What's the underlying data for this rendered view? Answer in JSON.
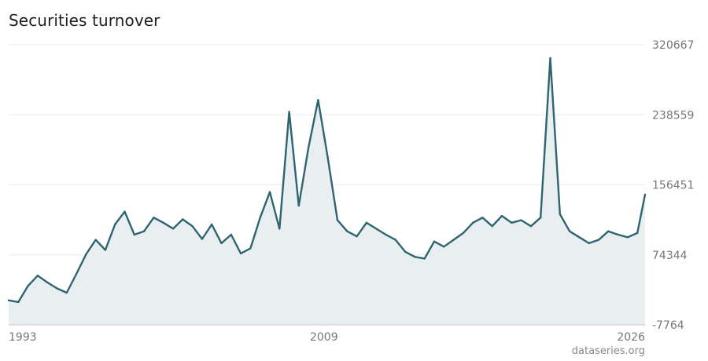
{
  "chart_data": {
    "type": "area",
    "title": "Securities turnover",
    "credit": "dataseries.org",
    "y_ticks": [
      "320667",
      "238559",
      "156451",
      "74344",
      "-7764"
    ],
    "x_ticks": [
      "1993",
      "2009",
      "2026"
    ],
    "ylim": [
      -7764,
      320667
    ],
    "xlim": [
      1993.0,
      2025.9
    ],
    "grid": "horizontal",
    "colors": {
      "line": "#2e6570",
      "fill": "#e9eff1",
      "grid": "#ebebeb",
      "axis": "#c8c8c8"
    },
    "x": [
      1993.0,
      1993.5,
      1994.0,
      1994.5,
      1995.0,
      1995.5,
      1996.0,
      1996.5,
      1997.0,
      1997.5,
      1998.0,
      1998.5,
      1999.0,
      1999.5,
      2000.0,
      2000.5,
      2001.0,
      2001.5,
      2002.0,
      2002.5,
      2003.0,
      2003.5,
      2004.0,
      2004.5,
      2005.0,
      2005.5,
      2006.0,
      2006.5,
      2007.0,
      2007.5,
      2008.0,
      2008.5,
      2009.0,
      2009.5,
      2010.0,
      2010.5,
      2011.0,
      2011.5,
      2012.0,
      2012.5,
      2013.0,
      2013.5,
      2014.0,
      2014.5,
      2015.0,
      2015.5,
      2016.0,
      2016.5,
      2017.0,
      2017.5,
      2018.0,
      2018.5,
      2019.0,
      2019.5,
      2020.0,
      2020.5,
      2021.0,
      2021.5,
      2022.0,
      2022.5,
      2023.0,
      2023.5,
      2024.0,
      2024.5,
      2025.0,
      2025.5,
      2025.9
    ],
    "values": [
      21000,
      19000,
      38000,
      50000,
      42000,
      35000,
      30000,
      52000,
      75000,
      92000,
      80000,
      110000,
      125000,
      98000,
      102000,
      118000,
      112000,
      105000,
      116000,
      108000,
      93000,
      110000,
      88000,
      98000,
      76000,
      82000,
      118000,
      148000,
      105000,
      242000,
      132000,
      200000,
      256000,
      188000,
      115000,
      102000,
      96000,
      112000,
      105000,
      98000,
      92000,
      78000,
      72000,
      70000,
      90000,
      84000,
      92000,
      100000,
      112000,
      118000,
      108000,
      120000,
      112000,
      115000,
      108000,
      118000,
      305000,
      122000,
      102000,
      95000,
      88000,
      92000,
      102000,
      98000,
      95000,
      100000,
      145000
    ]
  }
}
